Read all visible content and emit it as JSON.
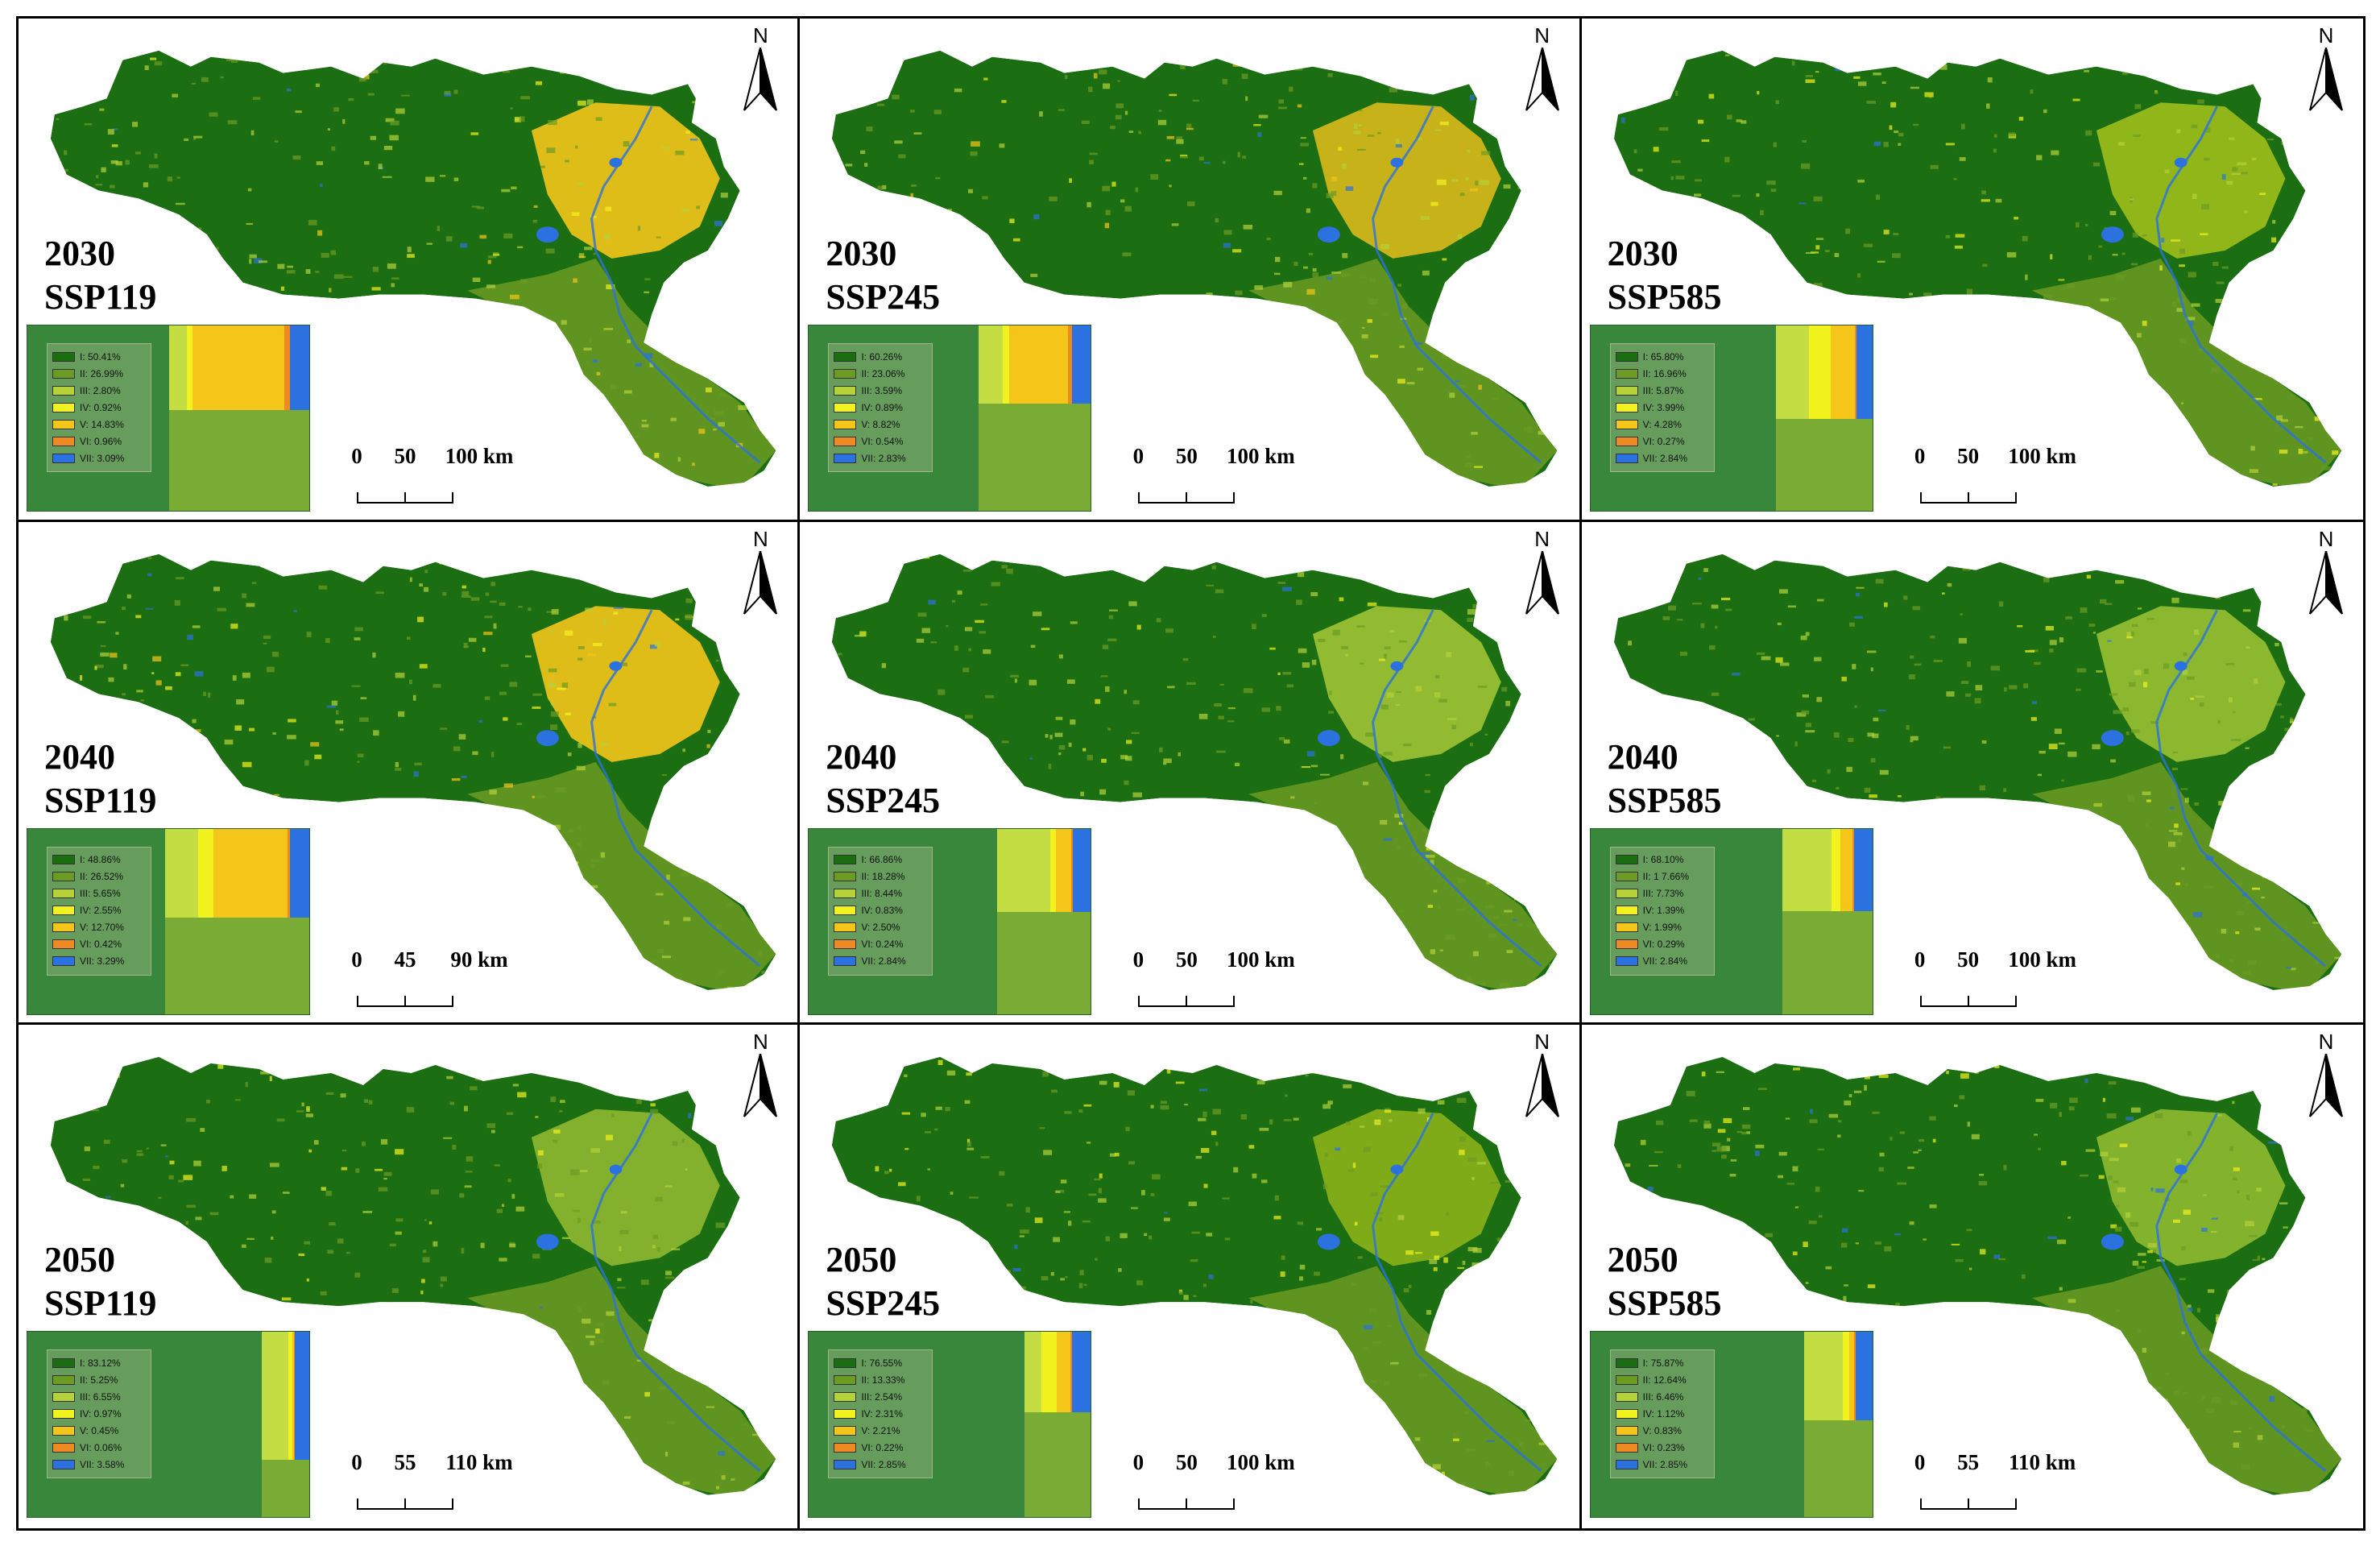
{
  "colors": {
    "I": "#1c6e13",
    "II": "#6b9b23",
    "III": "#b5d23a",
    "IV": "#f2f21f",
    "V": "#f5c51a",
    "VI": "#ee8a21",
    "VII": "#2b72e0",
    "legend_bg": "#38873a",
    "tm_I": "#38873a",
    "tm_II": "#7aab35",
    "tm_III": "#c3dd42"
  },
  "north_label": "N",
  "panels": [
    {
      "year": "2030",
      "scenario": "SSP119",
      "scale": [
        "0",
        "50",
        "100 km"
      ],
      "dominant": "V",
      "legend": [
        {
          "label": "I: 50.41%",
          "value": 50.41
        },
        {
          "label": "II: 26.99%",
          "value": 26.99
        },
        {
          "label": "III: 2.80%",
          "value": 2.8
        },
        {
          "label": "IV: 0.92%",
          "value": 0.92
        },
        {
          "label": "V: 14.83%",
          "value": 14.83
        },
        {
          "label": "VI: 0.96%",
          "value": 0.96
        },
        {
          "label": "VII: 3.09%",
          "value": 3.09
        }
      ]
    },
    {
      "year": "2030",
      "scenario": "SSP245",
      "scale": [
        "0",
        "50",
        "100 km"
      ],
      "dominant": "V",
      "legend": [
        {
          "label": "I: 60.26%",
          "value": 60.26
        },
        {
          "label": "II: 23.06%",
          "value": 23.06
        },
        {
          "label": "III: 3.59%",
          "value": 3.59
        },
        {
          "label": "IV: 0.89%",
          "value": 0.89
        },
        {
          "label": "V: 8.82%",
          "value": 8.82
        },
        {
          "label": "VI: 0.54%",
          "value": 0.54
        },
        {
          "label": "VII: 2.83%",
          "value": 2.83
        }
      ]
    },
    {
      "year": "2030",
      "scenario": "SSP585",
      "scale": [
        "0",
        "50",
        "100 km"
      ],
      "dominant": "IV",
      "legend": [
        {
          "label": "I: 65.80%",
          "value": 65.8
        },
        {
          "label": "II: 16.96%",
          "value": 16.96
        },
        {
          "label": "III: 5.87%",
          "value": 5.87
        },
        {
          "label": "IV: 3.99%",
          "value": 3.99
        },
        {
          "label": "V: 4.28%",
          "value": 4.28
        },
        {
          "label": "VI: 0.27%",
          "value": 0.27
        },
        {
          "label": "VII: 2.84%",
          "value": 2.84
        }
      ]
    },
    {
      "year": "2040",
      "scenario": "SSP119",
      "scale": [
        "0",
        "45",
        "90 km"
      ],
      "dominant": "V",
      "legend": [
        {
          "label": "I: 48.86%",
          "value": 48.86
        },
        {
          "label": "II: 26.52%",
          "value": 26.52
        },
        {
          "label": "III: 5.65%",
          "value": 5.65
        },
        {
          "label": "IV: 2.55%",
          "value": 2.55
        },
        {
          "label": "V: 12.70%",
          "value": 12.7
        },
        {
          "label": "VI: 0.42%",
          "value": 0.42
        },
        {
          "label": "VII: 3.29%",
          "value": 3.29
        }
      ]
    },
    {
      "year": "2040",
      "scenario": "SSP245",
      "scale": [
        "0",
        "50",
        "100 km"
      ],
      "dominant": "III",
      "legend": [
        {
          "label": "I: 66.86%",
          "value": 66.86
        },
        {
          "label": "II: 18.28%",
          "value": 18.28
        },
        {
          "label": "III: 8.44%",
          "value": 8.44
        },
        {
          "label": "IV: 0.83%",
          "value": 0.83
        },
        {
          "label": "V: 2.50%",
          "value": 2.5
        },
        {
          "label": "VI: 0.24%",
          "value": 0.24
        },
        {
          "label": "VII: 2.84%",
          "value": 2.84
        }
      ]
    },
    {
      "year": "2040",
      "scenario": "SSP585",
      "scale": [
        "0",
        "50",
        "100 km"
      ],
      "dominant": "III",
      "legend": [
        {
          "label": "I: 68.10%",
          "value": 68.1
        },
        {
          "label": "II: 1 7.66%",
          "value": 17.66
        },
        {
          "label": "III: 7.73%",
          "value": 7.73
        },
        {
          "label": "IV: 1.39%",
          "value": 1.39
        },
        {
          "label": "V: 1.99%",
          "value": 1.99
        },
        {
          "label": "VI: 0.29%",
          "value": 0.29
        },
        {
          "label": "VII: 2.84%",
          "value": 2.84
        }
      ]
    },
    {
      "year": "2050",
      "scenario": "SSP119",
      "scale": [
        "0",
        "55",
        "110 km"
      ],
      "dominant": "III",
      "legend": [
        {
          "label": "I: 83.12%",
          "value": 83.12
        },
        {
          "label": "II: 5.25%",
          "value": 5.25
        },
        {
          "label": "III: 6.55%",
          "value": 6.55
        },
        {
          "label": "IV: 0.97%",
          "value": 0.97
        },
        {
          "label": "V: 0.45%",
          "value": 0.45
        },
        {
          "label": "VI: 0.06%",
          "value": 0.06
        },
        {
          "label": "VII: 3.58%",
          "value": 3.58
        }
      ]
    },
    {
      "year": "2050",
      "scenario": "SSP245",
      "scale": [
        "0",
        "50",
        "100 km"
      ],
      "dominant": "IV",
      "legend": [
        {
          "label": "I: 76.55%",
          "value": 76.55
        },
        {
          "label": "II: 13.33%",
          "value": 13.33
        },
        {
          "label": "III: 2.54%",
          "value": 2.54
        },
        {
          "label": "IV: 2.31%",
          "value": 2.31
        },
        {
          "label": "V: 2.21%",
          "value": 2.21
        },
        {
          "label": "VI: 0.22%",
          "value": 0.22
        },
        {
          "label": "VII: 2.85%",
          "value": 2.85
        }
      ]
    },
    {
      "year": "2050",
      "scenario": "SSP585",
      "scale": [
        "0",
        "55",
        "110 km"
      ],
      "dominant": "III",
      "legend": [
        {
          "label": "I: 75.87%",
          "value": 75.87
        },
        {
          "label": "II: 12.64%",
          "value": 12.64
        },
        {
          "label": "III: 6.46%",
          "value": 6.46
        },
        {
          "label": "IV: 1.12%",
          "value": 1.12
        },
        {
          "label": "V: 0.83%",
          "value": 0.83
        },
        {
          "label": "VI: 0.23%",
          "value": 0.23
        },
        {
          "label": "VII: 2.85%",
          "value": 2.85
        }
      ]
    }
  ]
}
